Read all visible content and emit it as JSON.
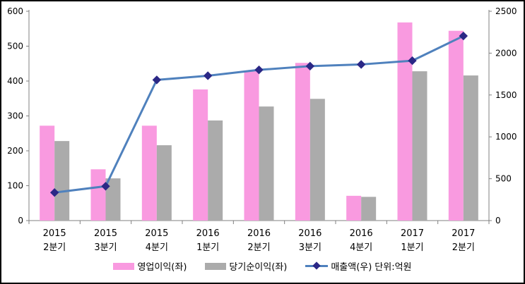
{
  "chart_data": {
    "type": "bar+line combo",
    "title": "",
    "categories": [
      "2015 2분기",
      "2015 3분기",
      "2015 4분기",
      "2016 1분기",
      "2016 2분기",
      "2016 3분기",
      "2016 4분기",
      "2017 1분기",
      "2017 2분기"
    ],
    "series": [
      {
        "name": "영업이익(좌)",
        "chart_type": "bar",
        "axis": "left",
        "color": "#F99AE0",
        "values": [
          272,
          147,
          272,
          376,
          428,
          452,
          71,
          568,
          544
        ]
      },
      {
        "name": "당기순이익(좌)",
        "chart_type": "bar",
        "axis": "left",
        "color": "#ABABAB",
        "values": [
          228,
          121,
          216,
          287,
          327,
          349,
          68,
          428,
          416
        ]
      },
      {
        "name": "매출액(우)",
        "chart_type": "line",
        "axis": "right",
        "color": "#4F81BD",
        "marker": "diamond",
        "marker_color": "#2B2886",
        "values": [
          335,
          410,
          1680,
          1730,
          1800,
          1845,
          1865,
          1910,
          2205
        ]
      }
    ],
    "left_axis": {
      "min": 0,
      "max": 600,
      "step": 100
    },
    "right_axis": {
      "min": 0,
      "max": 2500,
      "step": 500
    },
    "unit_label": "단위:억원",
    "legend_position": "bottom",
    "grid": "off",
    "axis_color": "#808080",
    "text_color": "#000000"
  }
}
